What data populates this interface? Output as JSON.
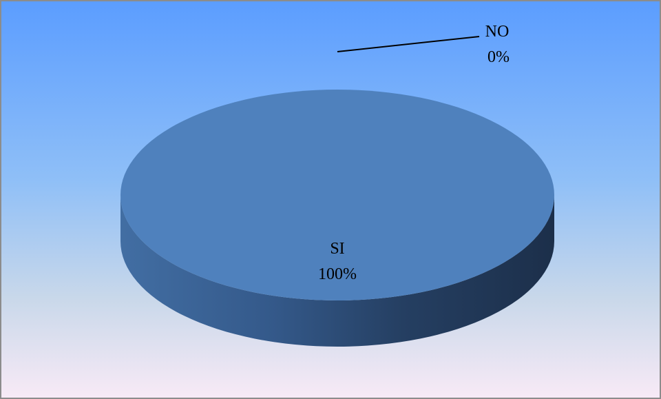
{
  "chart_data": {
    "type": "pie",
    "categories": [
      "SI",
      "NO"
    ],
    "values": [
      100,
      0
    ],
    "value_labels": [
      "100%",
      "0%"
    ],
    "colors": [
      "#4f81bd",
      "#c0504d"
    ]
  }
}
